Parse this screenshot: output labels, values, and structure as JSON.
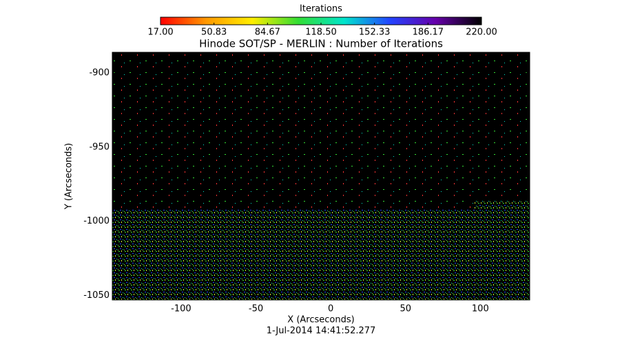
{
  "chart_data": {
    "type": "image",
    "title": "Hinode SOT/SP - MERLIN : Number of Iterations",
    "xlabel": "X (Arcseconds)",
    "ylabel": "Y (Arcseconds)",
    "footer": "1-Jul-2014 14:41:52.277",
    "xlim": [
      -146,
      133
    ],
    "ylim": [
      -1053,
      -886
    ],
    "xticks": [
      -100,
      -50,
      0,
      50,
      100
    ],
    "yticks": [
      -900,
      -950,
      -1000,
      -1050
    ],
    "colorbar": {
      "title": "Iterations",
      "lim": [
        17,
        220
      ],
      "ticks": [
        {
          "value": 17,
          "label": "17.00"
        },
        50.83,
        84.67,
        {
          "value": 118.5,
          "label": "118.50"
        },
        152.33,
        186.17,
        {
          "value": 220,
          "label": "220.00"
        }
      ],
      "colors": [
        "#ff0000",
        "#ff9900",
        "#ffee00",
        "#33dd33",
        "#00e5cc",
        "#2244ff",
        "#6600aa",
        "#000000"
      ]
    }
  }
}
